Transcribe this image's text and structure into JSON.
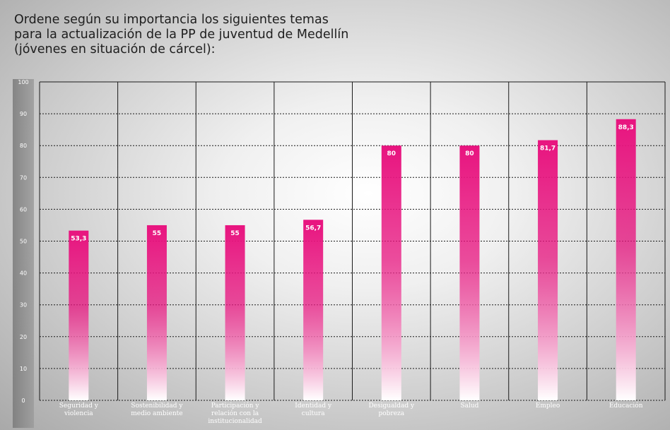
{
  "title_lines": [
    "Ordene según su importancia los siguientes temas",
    "para la actualización de la PP de juventud de Medellín",
    "(jóvenes en situación de cárcel):"
  ],
  "colors": {
    "bar": "#e8147f",
    "bar_fade": "#ffffff",
    "grid": "#1a1a1a",
    "axis_band": "#8c8c8c"
  },
  "chart_data": {
    "type": "bar",
    "title": "Ordene según su importancia los siguientes temas para la actualización de la PP de juventud de Medellín (jóvenes en situación de cárcel):",
    "categories": [
      [
        "Seguridad y",
        "violencia"
      ],
      [
        "Sostenibilidad y",
        "medio ambiente"
      ],
      [
        "Participación y",
        "relación con la",
        "institucionalidad"
      ],
      [
        "Identidad y",
        "cultura"
      ],
      [
        "Desigualdad y",
        "pobreza"
      ],
      [
        "Salud"
      ],
      [
        "Empleo"
      ],
      [
        "Educación"
      ]
    ],
    "values": [
      53.3,
      55,
      55,
      56.7,
      80,
      80,
      81.7,
      88.3
    ],
    "value_labels": [
      "53,3",
      "55",
      "55",
      "56,7",
      "80",
      "80",
      "81,7",
      "88,3"
    ],
    "ylim": [
      0,
      100
    ],
    "yticks": [
      0,
      10,
      20,
      30,
      40,
      50,
      60,
      70,
      80,
      90,
      100
    ],
    "grid": true,
    "xlabel": "",
    "ylabel": ""
  }
}
